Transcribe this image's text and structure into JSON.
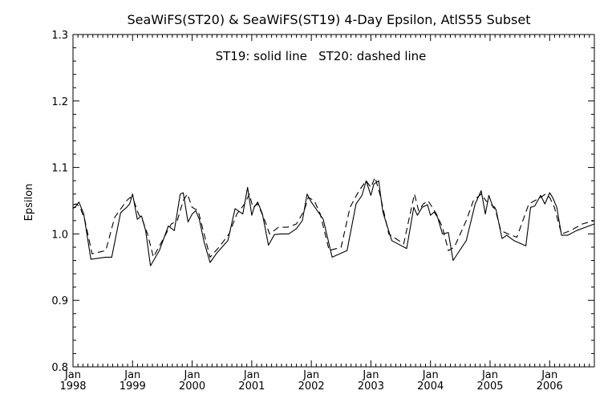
{
  "chart_data": {
    "type": "line",
    "title": "SeaWiFS(ST20) & SeaWiFS(ST19) 4-Day Epsilon, AtlS55 Subset",
    "annotation": "ST19: solid line   ST20: dashed line",
    "xlabel": "",
    "ylabel": "Epsilon",
    "ylim": [
      0.8,
      1.3
    ],
    "xlim": [
      1998.0,
      2006.75
    ],
    "y_ticks": [
      "0.8",
      "0.9",
      "1.0",
      "1.1",
      "1.2",
      "1.3"
    ],
    "x_ticks": [
      {
        "month": "Jan",
        "year": "1998"
      },
      {
        "month": "Jan",
        "year": "1999"
      },
      {
        "month": "Jan",
        "year": "2000"
      },
      {
        "month": "Jan",
        "year": "2001"
      },
      {
        "month": "Jan",
        "year": "2002"
      },
      {
        "month": "Jan",
        "year": "2003"
      },
      {
        "month": "Jan",
        "year": "2004"
      },
      {
        "month": "Jan",
        "year": "2005"
      },
      {
        "month": "Jan",
        "year": "2006"
      }
    ],
    "grid": false,
    "series": [
      {
        "name": "ST19",
        "style": "solid",
        "color": "#000000",
        "x": [
          1998.0,
          1998.05,
          1998.1,
          1998.18,
          1998.3,
          1998.55,
          1998.65,
          1998.8,
          1998.9,
          1998.95,
          1999.0,
          1999.08,
          1999.15,
          1999.22,
          1999.3,
          1999.45,
          1999.6,
          1999.7,
          1999.8,
          1999.85,
          1999.93,
          2000.0,
          2000.06,
          2000.12,
          2000.2,
          2000.3,
          2000.42,
          2000.6,
          2000.72,
          2000.85,
          2000.93,
          2001.0,
          2001.04,
          2001.1,
          2001.18,
          2001.28,
          2001.38,
          2001.5,
          2001.62,
          2001.75,
          2001.85,
          2001.93,
          2002.0,
          2002.1,
          2002.2,
          2002.35,
          2002.6,
          2002.75,
          2002.85,
          2002.92,
          2003.0,
          2003.05,
          2003.13,
          2003.2,
          2003.35,
          2003.6,
          2003.72,
          2003.78,
          2003.86,
          2003.95,
          2004.0,
          2004.06,
          2004.12,
          2004.2,
          2004.3,
          2004.38,
          2004.6,
          2004.75,
          2004.85,
          2004.92,
          2004.98,
          2005.05,
          2005.1,
          2005.2,
          2005.28,
          2005.4,
          2005.6,
          2005.68,
          2005.75,
          2005.85,
          2005.92,
          2006.0,
          2006.05,
          2006.12,
          2006.2,
          2006.3,
          2006.45,
          2006.6,
          2006.75
        ],
        "y": [
          1.038,
          1.042,
          1.048,
          1.03,
          0.962,
          0.965,
          0.965,
          1.032,
          1.04,
          1.045,
          1.06,
          1.022,
          1.027,
          1.005,
          0.952,
          0.975,
          1.012,
          1.005,
          1.06,
          1.062,
          1.018,
          1.03,
          1.035,
          1.022,
          0.988,
          0.957,
          0.972,
          0.99,
          1.038,
          1.03,
          1.07,
          1.028,
          1.04,
          1.048,
          1.03,
          0.983,
          0.999,
          1.0,
          1.0,
          1.008,
          1.02,
          1.06,
          1.048,
          1.035,
          1.022,
          0.965,
          0.975,
          1.045,
          1.058,
          1.08,
          1.058,
          1.075,
          1.08,
          1.033,
          0.99,
          0.978,
          1.04,
          1.028,
          1.04,
          1.044,
          1.028,
          1.033,
          1.025,
          1.0,
          1.002,
          0.96,
          0.99,
          1.045,
          1.065,
          1.03,
          1.058,
          1.04,
          1.037,
          0.993,
          0.998,
          0.99,
          0.982,
          1.04,
          1.042,
          1.058,
          1.045,
          1.062,
          1.055,
          1.04,
          0.998,
          0.998,
          1.005,
          1.01,
          1.015
        ]
      },
      {
        "name": "ST20",
        "style": "dashed",
        "color": "#000000",
        "x": [
          1998.0,
          1998.06,
          1998.12,
          1998.2,
          1998.32,
          1998.55,
          1998.7,
          1998.82,
          1998.9,
          1998.96,
          1999.02,
          1999.1,
          1999.17,
          1999.25,
          1999.35,
          1999.5,
          1999.65,
          1999.75,
          1999.85,
          1999.92,
          2000.0,
          2000.1,
          2000.2,
          2000.3,
          2000.45,
          2000.62,
          2000.75,
          2000.88,
          2000.96,
          2001.02,
          2001.1,
          2001.2,
          2001.3,
          2001.45,
          2001.6,
          2001.75,
          2001.88,
          2001.95,
          2002.05,
          2002.15,
          2002.3,
          2002.5,
          2002.65,
          2002.8,
          2002.92,
          2003.0,
          2003.07,
          2003.15,
          2003.3,
          2003.55,
          2003.73,
          2003.8,
          2003.88,
          2003.96,
          2004.03,
          2004.1,
          2004.2,
          2004.3,
          2004.4,
          2004.6,
          2004.72,
          2004.85,
          2004.93,
          2005.0,
          2005.08,
          2005.18,
          2005.3,
          2005.45,
          2005.65,
          2005.75,
          2005.85,
          2005.93,
          2006.0,
          2006.08,
          2006.2,
          2006.35,
          2006.55,
          2006.75
        ],
        "y": [
          1.044,
          1.045,
          1.04,
          1.02,
          0.97,
          0.975,
          1.025,
          1.04,
          1.05,
          1.055,
          1.05,
          1.03,
          1.02,
          1.0,
          0.965,
          0.99,
          1.015,
          1.02,
          1.05,
          1.06,
          1.04,
          1.035,
          1.0,
          0.965,
          0.98,
          1.0,
          1.03,
          1.045,
          1.06,
          1.04,
          1.045,
          1.025,
          1.0,
          1.01,
          1.01,
          1.015,
          1.035,
          1.055,
          1.05,
          1.03,
          0.975,
          0.98,
          1.04,
          1.065,
          1.08,
          1.07,
          1.085,
          1.06,
          1.0,
          0.985,
          1.06,
          1.035,
          1.045,
          1.05,
          1.04,
          1.03,
          1.01,
          0.975,
          0.98,
          1.02,
          1.05,
          1.06,
          1.05,
          1.045,
          1.04,
          1.005,
          1.0,
          0.995,
          1.045,
          1.05,
          1.055,
          1.06,
          1.055,
          1.04,
          1.0,
          1.005,
          1.015,
          1.02
        ]
      }
    ]
  }
}
